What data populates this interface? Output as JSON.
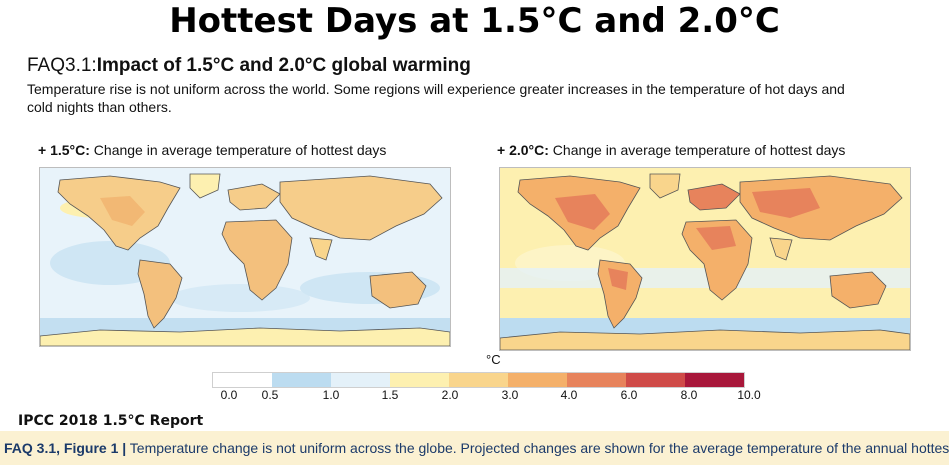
{
  "title": "Hottest Days at 1.5°C and 2.0°C",
  "faq": {
    "number": "FAQ3.1:",
    "heading": "Impact of 1.5°C and 2.0°C global warming",
    "description": "Temperature rise is not uniform across the world. Some regions will experience greater increases in the temperature of hot days and cold nights than others."
  },
  "maps": [
    {
      "label_bold": "+ 1.5°C:",
      "label_text": " Change in average temperature of hottest days"
    },
    {
      "label_bold": "+ 2.0°C:",
      "label_text": " Change in average temperature of hottest days"
    }
  ],
  "legend": {
    "unit": "°C",
    "ticks": [
      "0.0",
      "0.5",
      "1.0",
      "1.5",
      "2.0",
      "3.0",
      "4.0",
      "6.0",
      "8.0",
      "10.0"
    ],
    "colors": [
      "#ffffff",
      "#bcdcf0",
      "#e4f1f9",
      "#fdf0b0",
      "#f9d58c",
      "#f4b06a",
      "#e7835c",
      "#cf4b48",
      "#a8173a",
      "#6e1025"
    ]
  },
  "source": "IPCC 2018 1.5°C Report",
  "figure_caption": {
    "label": "FAQ 3.1, Figure 1 |",
    "text": " Temperature change is not uniform across the globe. Projected changes are shown for the average temperature of the annual hottest day"
  }
}
